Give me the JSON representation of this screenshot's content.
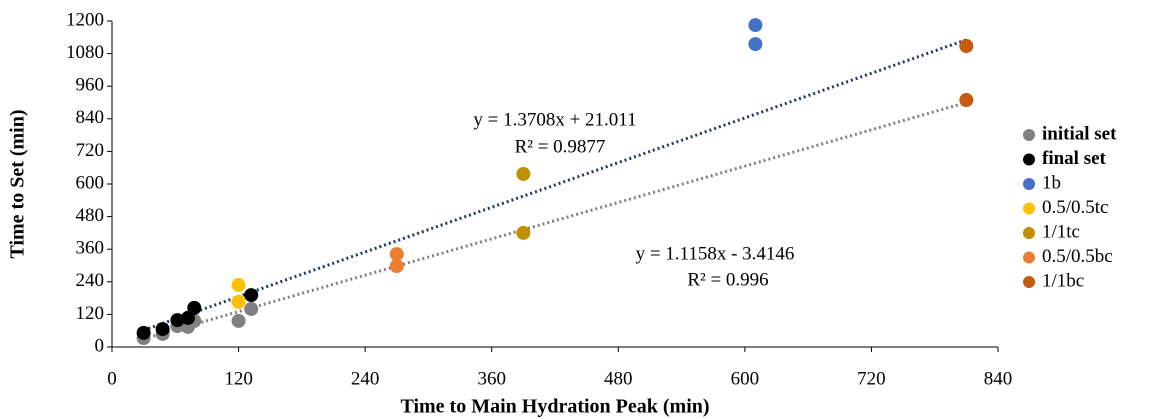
{
  "chart_data": {
    "type": "scatter",
    "x_label": "Time to Main Hydration Peak (min)",
    "y_label": "Time to Set (min)",
    "xlim": [
      0,
      840
    ],
    "xticks": [
      0,
      120,
      240,
      360,
      480,
      600,
      720,
      840
    ],
    "ylim": [
      0,
      1200
    ],
    "yticks": [
      0,
      120,
      240,
      360,
      480,
      600,
      720,
      840,
      960,
      1080,
      1200
    ],
    "grid": false,
    "legend": "right",
    "series": [
      {
        "name": "initial set",
        "color": "#808080",
        "x": [
          30,
          48,
          62,
          72,
          78,
          120,
          132
        ],
        "values": [
          33,
          48,
          77,
          74,
          96,
          96,
          140
        ]
      },
      {
        "name": "final set",
        "color": "#000000",
        "x": [
          30,
          48,
          62,
          72,
          78,
          132
        ],
        "values": [
          52,
          66,
          99,
          107,
          144,
          191
        ]
      },
      {
        "name": "1b",
        "color": "#4472c4",
        "x": [
          610,
          610
        ],
        "values": [
          1115,
          1185
        ]
      },
      {
        "name": "0.5/0.5tc",
        "color": "#ffc000",
        "x": [
          120,
          120
        ],
        "values": [
          166,
          228
        ]
      },
      {
        "name": "1/1tc",
        "color": "#bf9000",
        "x": [
          390,
          390
        ],
        "values": [
          420,
          637
        ]
      },
      {
        "name": "0.5/0.5bc",
        "color": "#ed7d31",
        "x": [
          270,
          270
        ],
        "values": [
          298,
          342
        ]
      },
      {
        "name": "1/1bc",
        "color": "#c55a11",
        "x": [
          810,
          810
        ],
        "values": [
          909,
          1108
        ]
      }
    ],
    "trendlines": [
      {
        "color": "#1f3864",
        "x": [
          30,
          810
        ],
        "values": [
          62,
          1131
        ],
        "equation": "y = 1.3708x + 21.011",
        "r2": "R² = 0.9877"
      },
      {
        "color": "#808080",
        "x": [
          30,
          810
        ],
        "values": [
          30,
          900
        ],
        "equation": "y = 1.1158x - 3.4146",
        "r2": "R² = 0.996"
      }
    ]
  }
}
